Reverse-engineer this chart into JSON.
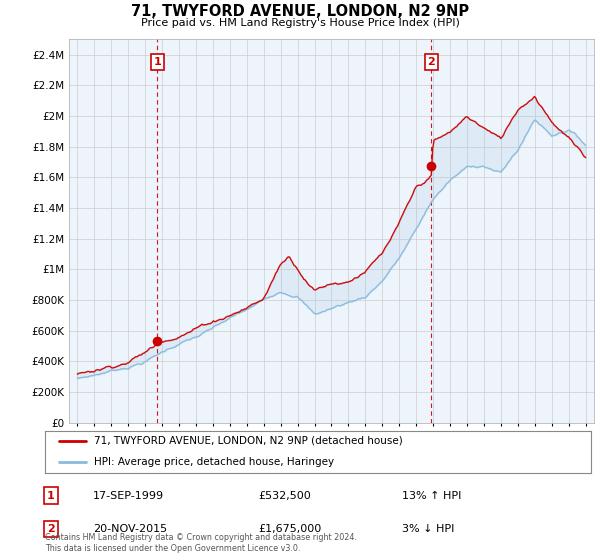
{
  "title": "71, TWYFORD AVENUE, LONDON, N2 9NP",
  "subtitle": "Price paid vs. HM Land Registry's House Price Index (HPI)",
  "legend_line1": "71, TWYFORD AVENUE, LONDON, N2 9NP (detached house)",
  "legend_line2": "HPI: Average price, detached house, Haringey",
  "footnote": "Contains HM Land Registry data © Crown copyright and database right 2024.\nThis data is licensed under the Open Government Licence v3.0.",
  "transaction1_label": "1",
  "transaction1_date": "17-SEP-1999",
  "transaction1_price": "£532,500",
  "transaction1_hpi": "13% ↑ HPI",
  "transaction2_label": "2",
  "transaction2_date": "20-NOV-2015",
  "transaction2_price": "£1,675,000",
  "transaction2_hpi": "3% ↓ HPI",
  "marker1_x": 1999.72,
  "marker1_y": 532500,
  "marker2_x": 2015.89,
  "marker2_y": 1675000,
  "vline1_x": 1999.72,
  "vline2_x": 2015.89,
  "hpi_color": "#88bbdd",
  "price_color": "#cc0000",
  "vline_color": "#cc0000",
  "ylim_min": 0,
  "ylim_max": 2500000,
  "xlim_min": 1994.5,
  "xlim_max": 2025.5,
  "yticks": [
    0,
    200000,
    400000,
    600000,
    800000,
    1000000,
    1200000,
    1400000,
    1600000,
    1800000,
    2000000,
    2200000,
    2400000
  ],
  "ytick_labels": [
    "£0",
    "£200K",
    "£400K",
    "£600K",
    "£800K",
    "£1M",
    "£1.2M",
    "£1.4M",
    "£1.6M",
    "£1.8M",
    "£2M",
    "£2.2M",
    "£2.4M"
  ],
  "xticks": [
    1995,
    1996,
    1997,
    1998,
    1999,
    2000,
    2001,
    2002,
    2003,
    2004,
    2005,
    2006,
    2007,
    2008,
    2009,
    2010,
    2011,
    2012,
    2013,
    2014,
    2015,
    2016,
    2017,
    2018,
    2019,
    2020,
    2021,
    2022,
    2023,
    2024,
    2025
  ],
  "background_color": "#ffffff",
  "grid_color": "#cccccc",
  "chart_bg": "#eef4fb"
}
